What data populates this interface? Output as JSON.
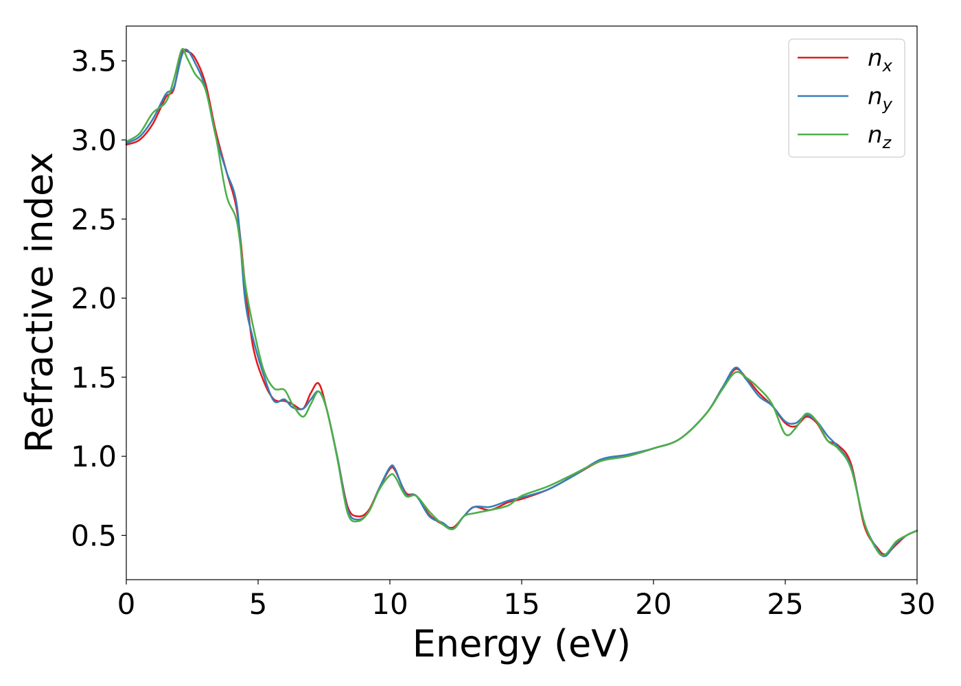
{
  "chart_data": {
    "type": "line",
    "title": "",
    "xlabel": "Energy (eV)",
    "ylabel": "Refractive index",
    "xlim": [
      0,
      30
    ],
    "ylim": [
      0.22,
      3.72
    ],
    "xticks": [
      "0",
      "5",
      "10",
      "15",
      "20",
      "25",
      "30"
    ],
    "yticks": [
      "0.5",
      "1.0",
      "1.5",
      "2.0",
      "2.5",
      "3.0",
      "3.5"
    ],
    "grid": false,
    "legend_position": "top-right",
    "series": [
      {
        "name": "n",
        "sub": "x",
        "color": "#e41a1c",
        "points": [
          [
            0,
            2.97
          ],
          [
            0.5,
            3.0
          ],
          [
            1.0,
            3.1
          ],
          [
            1.5,
            3.27
          ],
          [
            1.8,
            3.32
          ],
          [
            2.1,
            3.55
          ],
          [
            2.3,
            3.56
          ],
          [
            2.6,
            3.52
          ],
          [
            3.0,
            3.36
          ],
          [
            3.4,
            3.05
          ],
          [
            3.8,
            2.8
          ],
          [
            4.2,
            2.55
          ],
          [
            4.5,
            2.1
          ],
          [
            4.8,
            1.7
          ],
          [
            5.2,
            1.48
          ],
          [
            5.6,
            1.36
          ],
          [
            6.0,
            1.35
          ],
          [
            6.3,
            1.33
          ],
          [
            6.7,
            1.3
          ],
          [
            7.0,
            1.4
          ],
          [
            7.3,
            1.46
          ],
          [
            7.6,
            1.3
          ],
          [
            8.0,
            1.0
          ],
          [
            8.4,
            0.68
          ],
          [
            8.8,
            0.62
          ],
          [
            9.2,
            0.66
          ],
          [
            9.6,
            0.8
          ],
          [
            10.0,
            0.92
          ],
          [
            10.2,
            0.91
          ],
          [
            10.6,
            0.77
          ],
          [
            11.0,
            0.75
          ],
          [
            11.5,
            0.63
          ],
          [
            12.0,
            0.57
          ],
          [
            12.4,
            0.55
          ],
          [
            12.8,
            0.62
          ],
          [
            13.2,
            0.68
          ],
          [
            13.8,
            0.66
          ],
          [
            14.5,
            0.71
          ],
          [
            15.0,
            0.73
          ],
          [
            16.0,
            0.79
          ],
          [
            17.0,
            0.88
          ],
          [
            18.0,
            0.97
          ],
          [
            19.0,
            1.0
          ],
          [
            20.0,
            1.05
          ],
          [
            21.0,
            1.11
          ],
          [
            22.0,
            1.27
          ],
          [
            22.6,
            1.43
          ],
          [
            23.1,
            1.55
          ],
          [
            23.5,
            1.5
          ],
          [
            24.0,
            1.4
          ],
          [
            24.5,
            1.32
          ],
          [
            25.0,
            1.21
          ],
          [
            25.4,
            1.19
          ],
          [
            25.8,
            1.25
          ],
          [
            26.2,
            1.21
          ],
          [
            26.6,
            1.1
          ],
          [
            27.0,
            1.07
          ],
          [
            27.5,
            0.95
          ],
          [
            28.0,
            0.56
          ],
          [
            28.5,
            0.42
          ],
          [
            28.8,
            0.38
          ],
          [
            29.2,
            0.44
          ],
          [
            29.6,
            0.5
          ],
          [
            30.0,
            0.53
          ]
        ]
      },
      {
        "name": "n",
        "sub": "y",
        "color": "#377eb8",
        "points": [
          [
            0,
            2.98
          ],
          [
            0.5,
            3.02
          ],
          [
            1.0,
            3.13
          ],
          [
            1.5,
            3.29
          ],
          [
            1.8,
            3.33
          ],
          [
            2.1,
            3.53
          ],
          [
            2.3,
            3.57
          ],
          [
            2.6,
            3.49
          ],
          [
            3.0,
            3.33
          ],
          [
            3.4,
            3.02
          ],
          [
            3.8,
            2.8
          ],
          [
            4.2,
            2.58
          ],
          [
            4.5,
            2.0
          ],
          [
            4.8,
            1.75
          ],
          [
            5.2,
            1.52
          ],
          [
            5.6,
            1.35
          ],
          [
            6.0,
            1.36
          ],
          [
            6.3,
            1.31
          ],
          [
            6.7,
            1.3
          ],
          [
            7.0,
            1.36
          ],
          [
            7.3,
            1.41
          ],
          [
            7.6,
            1.3
          ],
          [
            8.0,
            1.0
          ],
          [
            8.4,
            0.66
          ],
          [
            8.8,
            0.6
          ],
          [
            9.2,
            0.65
          ],
          [
            9.6,
            0.8
          ],
          [
            10.0,
            0.93
          ],
          [
            10.2,
            0.92
          ],
          [
            10.6,
            0.76
          ],
          [
            11.0,
            0.75
          ],
          [
            11.5,
            0.62
          ],
          [
            12.0,
            0.58
          ],
          [
            12.4,
            0.54
          ],
          [
            12.8,
            0.62
          ],
          [
            13.2,
            0.68
          ],
          [
            13.8,
            0.68
          ],
          [
            14.5,
            0.72
          ],
          [
            15.0,
            0.74
          ],
          [
            16.0,
            0.79
          ],
          [
            17.0,
            0.88
          ],
          [
            18.0,
            0.98
          ],
          [
            19.0,
            1.01
          ],
          [
            20.0,
            1.05
          ],
          [
            21.0,
            1.11
          ],
          [
            22.0,
            1.27
          ],
          [
            22.6,
            1.43
          ],
          [
            23.1,
            1.56
          ],
          [
            23.5,
            1.49
          ],
          [
            24.0,
            1.38
          ],
          [
            24.5,
            1.32
          ],
          [
            25.0,
            1.22
          ],
          [
            25.4,
            1.21
          ],
          [
            25.8,
            1.26
          ],
          [
            26.2,
            1.22
          ],
          [
            26.6,
            1.13
          ],
          [
            27.0,
            1.06
          ],
          [
            27.5,
            0.93
          ],
          [
            28.0,
            0.58
          ],
          [
            28.5,
            0.41
          ],
          [
            28.8,
            0.37
          ],
          [
            29.2,
            0.45
          ],
          [
            29.6,
            0.5
          ],
          [
            30.0,
            0.53
          ]
        ]
      },
      {
        "name": "n",
        "sub": "z",
        "color": "#4daf4a",
        "points": [
          [
            0,
            2.99
          ],
          [
            0.5,
            3.04
          ],
          [
            1.0,
            3.17
          ],
          [
            1.5,
            3.24
          ],
          [
            1.8,
            3.38
          ],
          [
            2.1,
            3.57
          ],
          [
            2.3,
            3.52
          ],
          [
            2.6,
            3.42
          ],
          [
            3.0,
            3.32
          ],
          [
            3.4,
            3.02
          ],
          [
            3.8,
            2.65
          ],
          [
            4.2,
            2.48
          ],
          [
            4.5,
            2.1
          ],
          [
            4.8,
            1.83
          ],
          [
            5.2,
            1.55
          ],
          [
            5.6,
            1.43
          ],
          [
            6.0,
            1.42
          ],
          [
            6.3,
            1.33
          ],
          [
            6.7,
            1.25
          ],
          [
            7.0,
            1.33
          ],
          [
            7.3,
            1.41
          ],
          [
            7.6,
            1.3
          ],
          [
            8.0,
            0.99
          ],
          [
            8.4,
            0.64
          ],
          [
            8.8,
            0.59
          ],
          [
            9.2,
            0.65
          ],
          [
            9.6,
            0.79
          ],
          [
            10.0,
            0.88
          ],
          [
            10.2,
            0.87
          ],
          [
            10.6,
            0.75
          ],
          [
            11.0,
            0.75
          ],
          [
            11.5,
            0.65
          ],
          [
            12.0,
            0.57
          ],
          [
            12.4,
            0.54
          ],
          [
            12.8,
            0.62
          ],
          [
            13.2,
            0.64
          ],
          [
            13.8,
            0.66
          ],
          [
            14.5,
            0.69
          ],
          [
            15.0,
            0.75
          ],
          [
            16.0,
            0.81
          ],
          [
            17.0,
            0.89
          ],
          [
            18.0,
            0.97
          ],
          [
            19.0,
            1.0
          ],
          [
            20.0,
            1.05
          ],
          [
            21.0,
            1.11
          ],
          [
            22.0,
            1.27
          ],
          [
            22.6,
            1.42
          ],
          [
            23.1,
            1.53
          ],
          [
            23.5,
            1.5
          ],
          [
            24.0,
            1.43
          ],
          [
            24.5,
            1.33
          ],
          [
            25.0,
            1.14
          ],
          [
            25.4,
            1.18
          ],
          [
            25.8,
            1.27
          ],
          [
            26.2,
            1.22
          ],
          [
            26.6,
            1.1
          ],
          [
            27.0,
            1.05
          ],
          [
            27.5,
            0.92
          ],
          [
            28.0,
            0.58
          ],
          [
            28.5,
            0.4
          ],
          [
            28.8,
            0.38
          ],
          [
            29.2,
            0.46
          ],
          [
            29.6,
            0.5
          ],
          [
            30.0,
            0.53
          ]
        ]
      }
    ]
  }
}
